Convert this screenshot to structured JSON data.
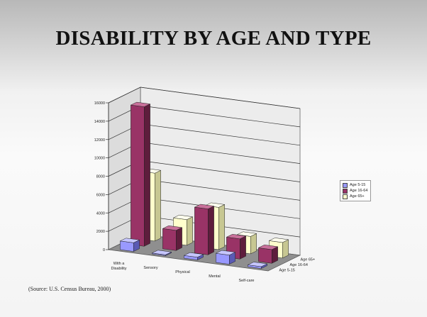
{
  "slide": {
    "title": "DISABILITY BY AGE AND TYPE",
    "source": "(Source: U.S. Census Bureau, 2000)"
  },
  "chart_data": {
    "type": "bar",
    "categories": [
      "With a Disability",
      "Sensory",
      "Physical",
      "Mental",
      "Self-care"
    ],
    "category_labels": [
      [
        "With a",
        "Disability"
      ],
      [
        "Sensory"
      ],
      [
        "Physical"
      ],
      [
        "Mental"
      ],
      [
        "Self-care"
      ]
    ],
    "series": [
      {
        "name": "Age  5-15",
        "values": [
          950,
          100,
          300,
          1000,
          200
        ],
        "color": "#9999ff",
        "top_color": "#c6c6ff",
        "side_color": "#5a5ab4"
      },
      {
        "name": "Age 16-64",
        "values": [
          15200,
          2200,
          5000,
          2200,
          1500
        ],
        "color": "#993366",
        "top_color": "#c8709a",
        "side_color": "#5e1d3c"
      },
      {
        "name": "Age 65+",
        "values": [
          7400,
          2800,
          4600,
          1900,
          1700
        ],
        "color": "#ffffcc",
        "top_color": "#ffffee",
        "side_color": "#c7c792"
      }
    ],
    "depth_labels": [
      "Age 65+",
      "Age 16-64",
      "Age  5-15"
    ],
    "yticks": [
      0,
      2000,
      4000,
      6000,
      8000,
      10000,
      12000,
      14000,
      16000
    ],
    "ylim": [
      0,
      16000
    ],
    "grid": true,
    "legend_position": "right",
    "view": "3d-column"
  }
}
